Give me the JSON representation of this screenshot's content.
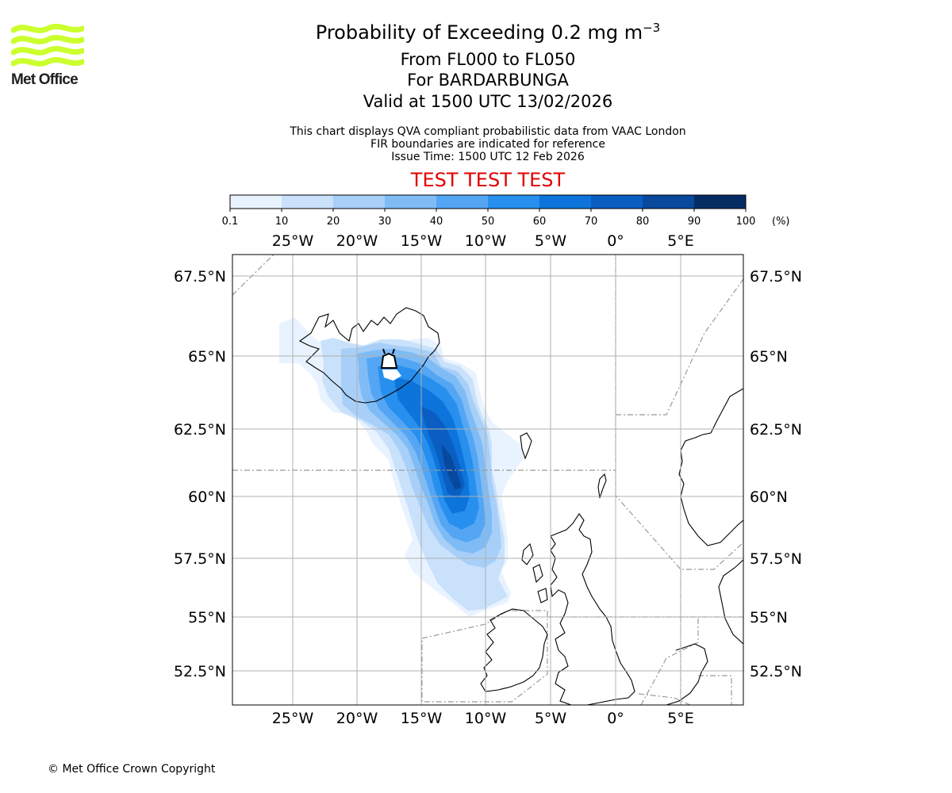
{
  "logo": {
    "text": "Met Office",
    "color": "#cbff2e"
  },
  "header": {
    "title": "Probability of Exceeding 0.2 mg m",
    "title_sup": "−3",
    "levels": "From FL000 to FL050",
    "volcano": "For BARDARBUNGA",
    "valid": "Valid at 1500 UTC 13/02/2026",
    "note1": "This chart displays QVA compliant probabilistic data from VAAC London",
    "note2": "FIR boundaries are indicated for reference",
    "issue": "Issue Time: 1500 UTC 12 Feb 2026",
    "test": "TEST TEST TEST",
    "test_color": "#e00000"
  },
  "colorbar": {
    "ticks": [
      "0.1",
      "10",
      "20",
      "30",
      "40",
      "50",
      "60",
      "70",
      "80",
      "90",
      "100"
    ],
    "unit": "(%)",
    "colors": [
      "#e9f3ff",
      "#c9e1fb",
      "#a7cff8",
      "#7fbcf6",
      "#54a6f4",
      "#2790ee",
      "#0d74db",
      "#0a5ec2",
      "#08489d",
      "#062c64"
    ]
  },
  "map": {
    "lon_labels": [
      "25°W",
      "20°W",
      "15°W",
      "10°W",
      "5°W",
      "0°",
      "5°E"
    ],
    "lat_labels": [
      "67.5°N",
      "65°N",
      "62.5°N",
      "60°N",
      "57.5°N",
      "55°N",
      "52.5°N"
    ]
  },
  "footer": {
    "copyright": "© Met Office Crown Copyright"
  }
}
